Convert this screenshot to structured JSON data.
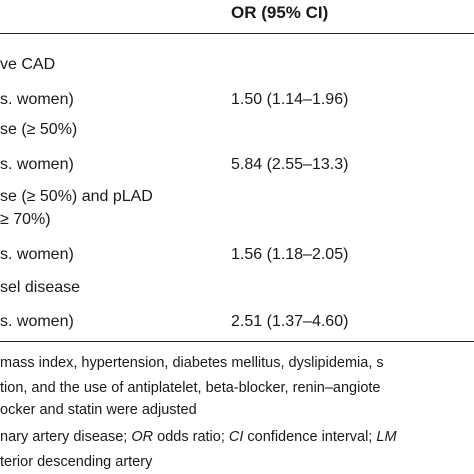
{
  "table": {
    "header": {
      "col_or": "OR (95% CI)"
    },
    "rows": [
      {
        "label": "ve CAD",
        "value": ""
      },
      {
        "label": "s. women)",
        "value": "1.50 (1.14–1.96)"
      },
      {
        "label": "se (≥ 50%)",
        "value": ""
      },
      {
        "label": "s. women)",
        "value": "5.84 (2.55–13.3)"
      },
      {
        "label": "se (≥ 50%) and pLAD",
        "value": ""
      },
      {
        "label": "≥ 70%)",
        "value": ""
      },
      {
        "label": "s. women)",
        "value": "1.56 (1.18–2.05)"
      },
      {
        "label": "sel disease",
        "value": ""
      },
      {
        "label": "s. women)",
        "value": "2.51 (1.37–4.60)"
      }
    ]
  },
  "footnotes": {
    "line1": "mass index, hypertension, diabetes mellitus, dyslipidemia, s",
    "line2": "tion, and the use of antiplatelet, beta-blocker, renin–angiote",
    "line3": "ocker and statin were adjusted",
    "line4_pre": "nary artery disease; ",
    "line4_or_abbr": "OR",
    "line4_or_def": " odds ratio; ",
    "line4_ci_abbr": "CI",
    "line4_ci_def": " confidence interval; ",
    "line4_lm_abbr": "LM",
    "line5": "terior descending artery"
  }
}
